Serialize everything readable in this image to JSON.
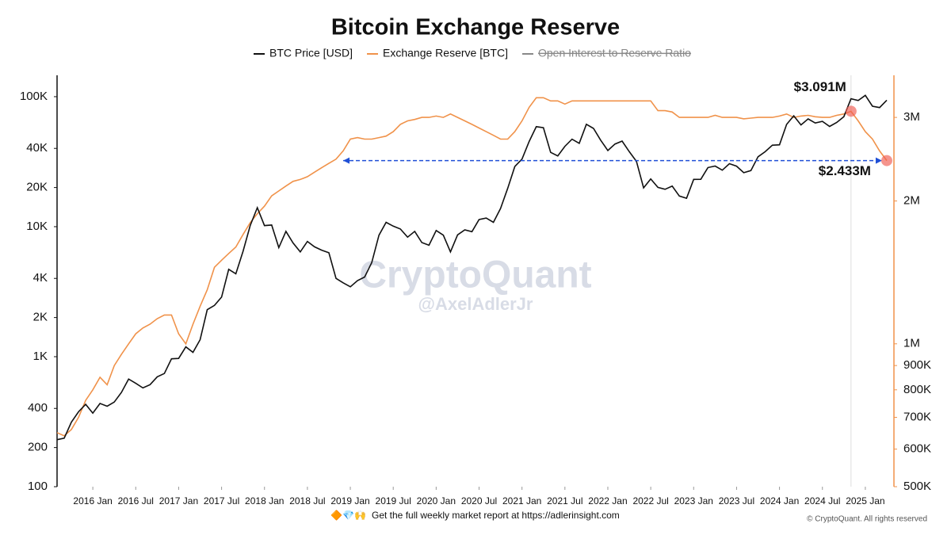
{
  "chart_data": {
    "type": "line",
    "title": "Bitcoin Exchange Reserve",
    "watermark": "CryptoQuant",
    "watermark_sub": "@AxelAdlerJr",
    "footer_icons": "🔶💎🙌",
    "footer": "Get the full weekly market report at https://adlerinsight.com",
    "copyright": "© CryptoQuant. All rights reserved",
    "legend_hidden": "Open Interest to Reserve Ratio",
    "log_y": true,
    "log_y2": true,
    "xlim": [
      "2015-08",
      "2025-05"
    ],
    "xticks": [
      {
        "value": "2016-01",
        "label": "2016 Jan"
      },
      {
        "value": "2016-07",
        "label": "2016 Jul"
      },
      {
        "value": "2017-01",
        "label": "2017 Jan"
      },
      {
        "value": "2017-07",
        "label": "2017 Jul"
      },
      {
        "value": "2018-01",
        "label": "2018 Jan"
      },
      {
        "value": "2018-07",
        "label": "2018 Jul"
      },
      {
        "value": "2019-01",
        "label": "2019 Jan"
      },
      {
        "value": "2019-07",
        "label": "2019 Jul"
      },
      {
        "value": "2020-01",
        "label": "2020 Jan"
      },
      {
        "value": "2020-07",
        "label": "2020 Jul"
      },
      {
        "value": "2021-01",
        "label": "2021 Jan"
      },
      {
        "value": "2021-07",
        "label": "2021 Jul"
      },
      {
        "value": "2022-01",
        "label": "2022 Jan"
      },
      {
        "value": "2022-07",
        "label": "2022 Jul"
      },
      {
        "value": "2023-01",
        "label": "2023 Jan"
      },
      {
        "value": "2023-07",
        "label": "2023 Jul"
      },
      {
        "value": "2024-01",
        "label": "2024 Jan"
      },
      {
        "value": "2024-07",
        "label": "2024 Jul"
      },
      {
        "value": "2025-01",
        "label": "2025 Jan"
      }
    ],
    "ylim": [
      100,
      146000
    ],
    "yticks": [
      100,
      200,
      400,
      {
        "value": 1000,
        "label": "1K"
      },
      {
        "value": 2000,
        "label": "2K"
      },
      {
        "value": 4000,
        "label": "4K"
      },
      {
        "value": 10000,
        "label": "10K"
      },
      {
        "value": 20000,
        "label": "20K"
      },
      {
        "value": 40000,
        "label": "40K"
      },
      {
        "value": 100000,
        "label": "100K"
      }
    ],
    "y2lim": [
      500000,
      3680000
    ],
    "y2ticks": [
      {
        "value": 500000,
        "label": "500K"
      },
      {
        "value": 600000,
        "label": "600K"
      },
      {
        "value": 700000,
        "label": "700K"
      },
      {
        "value": 800000,
        "label": "800K"
      },
      {
        "value": 900000,
        "label": "900K"
      },
      {
        "value": 1000000,
        "label": "1M"
      },
      {
        "value": 2000000,
        "label": "2M"
      },
      {
        "value": 3000000,
        "label": "3M"
      }
    ],
    "x": [
      "2015-08",
      "2015-09",
      "2015-10",
      "2015-11",
      "2015-12",
      "2016-01",
      "2016-02",
      "2016-03",
      "2016-04",
      "2016-05",
      "2016-06",
      "2016-07",
      "2016-08",
      "2016-09",
      "2016-10",
      "2016-11",
      "2016-12",
      "2017-01",
      "2017-02",
      "2017-03",
      "2017-04",
      "2017-05",
      "2017-06",
      "2017-07",
      "2017-08",
      "2017-09",
      "2017-10",
      "2017-11",
      "2017-12",
      "2018-01",
      "2018-02",
      "2018-03",
      "2018-04",
      "2018-05",
      "2018-06",
      "2018-07",
      "2018-08",
      "2018-09",
      "2018-10",
      "2018-11",
      "2018-12",
      "2019-01",
      "2019-02",
      "2019-03",
      "2019-04",
      "2019-05",
      "2019-06",
      "2019-07",
      "2019-08",
      "2019-09",
      "2019-10",
      "2019-11",
      "2019-12",
      "2020-01",
      "2020-02",
      "2020-03",
      "2020-04",
      "2020-05",
      "2020-06",
      "2020-07",
      "2020-08",
      "2020-09",
      "2020-10",
      "2020-11",
      "2020-12",
      "2021-01",
      "2021-02",
      "2021-03",
      "2021-04",
      "2021-05",
      "2021-06",
      "2021-07",
      "2021-08",
      "2021-09",
      "2021-10",
      "2021-11",
      "2021-12",
      "2022-01",
      "2022-02",
      "2022-03",
      "2022-04",
      "2022-05",
      "2022-06",
      "2022-07",
      "2022-08",
      "2022-09",
      "2022-10",
      "2022-11",
      "2022-12",
      "2023-01",
      "2023-02",
      "2023-03",
      "2023-04",
      "2023-05",
      "2023-06",
      "2023-07",
      "2023-08",
      "2023-09",
      "2023-10",
      "2023-11",
      "2023-12",
      "2024-01",
      "2024-02",
      "2024-03",
      "2024-04",
      "2024-05",
      "2024-06",
      "2024-07",
      "2024-08",
      "2024-09",
      "2024-10",
      "2024-11",
      "2024-12",
      "2025-01",
      "2025-02",
      "2025-03",
      "2025-04"
    ],
    "series": [
      {
        "name": "BTC Price [USD]",
        "color": "#111111",
        "values": [
          230,
          236,
          314,
          377,
          430,
          368,
          437,
          416,
          448,
          531,
          673,
          624,
          575,
          609,
          700,
          742,
          963,
          970,
          1190,
          1080,
          1350,
          2300,
          2480,
          2875,
          4700,
          4340,
          6470,
          10200,
          14000,
          10200,
          10300,
          6900,
          9200,
          7500,
          6400,
          7700,
          7000,
          6600,
          6300,
          4000,
          3700,
          3450,
          3850,
          4100,
          5300,
          8600,
          10800,
          10100,
          9600,
          8300,
          9200,
          7550,
          7200,
          9350,
          8600,
          6400,
          8650,
          9450,
          9150,
          11350,
          11650,
          10800,
          13800,
          19700,
          29000,
          33100,
          45200,
          58800,
          57700,
          37300,
          35000,
          41500,
          47100,
          43800,
          61300,
          57000,
          46300,
          38500,
          43200,
          45500,
          37700,
          31800,
          19900,
          23300,
          20050,
          19400,
          20500,
          17200,
          16550,
          23100,
          23150,
          28500,
          29250,
          27200,
          30500,
          29200,
          26000,
          27000,
          34500,
          37700,
          42300,
          42600,
          61200,
          71300,
          60600,
          67500,
          62700,
          64600,
          59000,
          63300,
          70200,
          96400,
          93400,
          102400,
          84400,
          82500,
          94000
        ]
      },
      {
        "name": "Exchange Reserve [BTC]",
        "color": "#f0924a",
        "axis": "y2",
        "values": [
          650000,
          640000,
          660000,
          700000,
          760000,
          800000,
          850000,
          820000,
          900000,
          950000,
          1000000,
          1050000,
          1080000,
          1100000,
          1130000,
          1150000,
          1150000,
          1050000,
          1000000,
          1100000,
          1200000,
          1300000,
          1450000,
          1500000,
          1550000,
          1600000,
          1700000,
          1800000,
          1880000,
          1950000,
          2050000,
          2100000,
          2150000,
          2200000,
          2220000,
          2250000,
          2300000,
          2350000,
          2400000,
          2450000,
          2550000,
          2700000,
          2720000,
          2700000,
          2700000,
          2720000,
          2740000,
          2800000,
          2900000,
          2950000,
          2970000,
          3000000,
          3000000,
          3020000,
          3000000,
          3050000,
          3000000,
          2950000,
          2900000,
          2850000,
          2800000,
          2750000,
          2700000,
          2700000,
          2800000,
          2950000,
          3150000,
          3300000,
          3300000,
          3250000,
          3250000,
          3200000,
          3250000,
          3250000,
          3250000,
          3250000,
          3250000,
          3250000,
          3250000,
          3250000,
          3250000,
          3250000,
          3250000,
          3250000,
          3100000,
          3100000,
          3080000,
          3000000,
          3000000,
          3000000,
          3000000,
          3000000,
          3030000,
          3000000,
          3000000,
          3000000,
          2980000,
          2990000,
          3000000,
          3000000,
          3000000,
          3020000,
          3050000,
          3000000,
          3020000,
          3030000,
          3010000,
          3000000,
          3000000,
          3030000,
          3050000,
          3091000,
          2950000,
          2800000,
          2700000,
          2550000,
          2433000
        ]
      }
    ],
    "annotations": [
      {
        "text": "$3.091M",
        "x": "2024-11",
        "value": 3091000
      },
      {
        "text": "$2.433M",
        "x": "2025-04",
        "value": 2433000,
        "from": "2018-12"
      }
    ]
  }
}
